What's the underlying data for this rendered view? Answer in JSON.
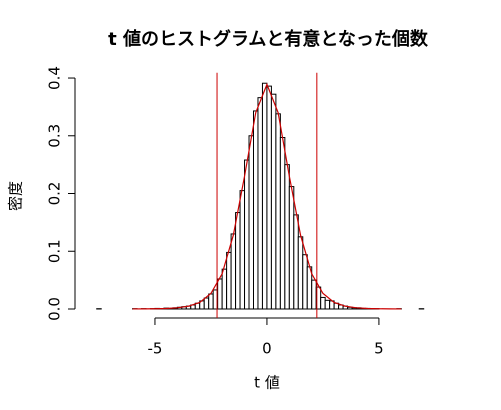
{
  "chart_data": {
    "type": "histogram",
    "title": "t 値のヒストグラムと有意となった個数",
    "xlabel": "t 値",
    "ylabel": "密度",
    "bins": [
      -7.6,
      -7.4,
      -7.2,
      -7,
      -6.8,
      -6.6,
      -6.4,
      -6.2,
      -6,
      -5.8,
      -5.6,
      -5.4,
      -5.2,
      -5,
      -4.8,
      -4.6,
      -4.4,
      -4.2,
      -4,
      -3.8,
      -3.6,
      -3.4,
      -3.2,
      -3,
      -2.8,
      -2.6,
      -2.4,
      -2.2,
      -2,
      -1.8,
      -1.6,
      -1.4,
      -1.2,
      -1,
      -0.8,
      -0.6,
      -0.4,
      -0.2,
      0,
      0.2,
      0.4,
      0.6,
      0.8,
      1,
      1.2,
      1.4,
      1.6,
      1.8,
      2,
      2.2,
      2.4,
      2.6,
      2.8,
      3,
      3.2,
      3.4,
      3.6,
      3.8,
      4,
      4.2,
      4.4,
      4.6,
      4.8,
      5,
      5.2,
      5.4,
      5.6,
      5.8,
      6,
      6.2,
      6.4,
      6.6,
      6.8,
      7
    ],
    "values": [
      0.0005,
      0,
      0,
      0,
      0,
      0,
      0,
      0,
      0.0005,
      0,
      0.0005,
      0,
      0.0005,
      0.001,
      0.0005,
      0.0015,
      0.001,
      0.002,
      0.003,
      0.004,
      0.005,
      0.007,
      0.01,
      0.014,
      0.019,
      0.026,
      0.033,
      0.052,
      0.069,
      0.098,
      0.13,
      0.167,
      0.205,
      0.258,
      0.3,
      0.343,
      0.366,
      0.391,
      0.386,
      0.372,
      0.338,
      0.297,
      0.25,
      0.212,
      0.163,
      0.125,
      0.094,
      0.073,
      0.05,
      0.038,
      0.02,
      0.015,
      0.014,
      0.01,
      0.007,
      0.005,
      0.003,
      0.002,
      0.002,
      0.001,
      0.001,
      0.0005,
      0.0005,
      0,
      0,
      0,
      0,
      0.0005,
      0,
      0,
      0,
      0,
      0.0005
    ],
    "color": "#ffffff",
    "edgecolor": "#000000",
    "curve": {
      "x": [
        -6,
        -5.5,
        -5,
        -4.5,
        -4,
        -3.5,
        -3,
        -2.5,
        -2,
        -1.5,
        -1,
        -0.5,
        0,
        0.5,
        1,
        1.5,
        2,
        2.5,
        3,
        3.5,
        4,
        4.5,
        5,
        5.5,
        6
      ],
      "y": [
        0.0001,
        0.0002,
        0.0004,
        0.0009,
        0.002,
        0.0048,
        0.0114,
        0.027,
        0.061,
        0.128,
        0.23,
        0.34,
        0.389,
        0.34,
        0.23,
        0.128,
        0.061,
        0.027,
        0.0114,
        0.0048,
        0.002,
        0.0009,
        0.0004,
        0.0002,
        0.0001
      ],
      "color": "#cc0000"
    },
    "vlines": {
      "values": [
        -2.228,
        2.228
      ],
      "color": "#cc0000"
    },
    "xlim": [
      -8.57,
      8.04
    ],
    "ylim": [
      -0.0156,
      0.4056
    ],
    "xticks": [
      -5,
      0,
      5
    ],
    "yticks": [
      {
        "value": 0,
        "label": "0.0"
      },
      0.1,
      0.2,
      0.3,
      0.4
    ]
  }
}
